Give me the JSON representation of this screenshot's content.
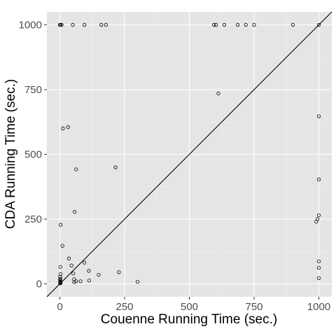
{
  "chart_data": {
    "type": "scatter",
    "title": "",
    "xlabel": "Couenne Running Time (sec.)",
    "ylabel": "CDA Running Time (sec.)",
    "xlim": [
      -50,
      1050
    ],
    "ylim": [
      -50,
      1050
    ],
    "x_ticks": [
      0,
      250,
      500,
      750,
      1000
    ],
    "y_ticks": [
      0,
      250,
      500,
      750,
      1000
    ],
    "x_tick_labels": [
      "0",
      "250",
      "500",
      "750",
      "1000"
    ],
    "y_tick_labels": [
      "0",
      "250",
      "500",
      "750",
      "1000"
    ],
    "grid": true,
    "reference_line": "y = x",
    "colors": {
      "panel_background": "#e5e5e5",
      "grid_major": "#ffffff",
      "grid_minor": "#f2f2f2",
      "point_stroke": "#000000",
      "reference_line": "#000000",
      "tick_label": "#4d4d4d",
      "axis_title": "#000000"
    },
    "points": [
      {
        "x": 0,
        "y": 1000
      },
      {
        "x": 3,
        "y": 1000
      },
      {
        "x": 7,
        "y": 1000
      },
      {
        "x": 50,
        "y": 1000
      },
      {
        "x": 95,
        "y": 1000
      },
      {
        "x": 160,
        "y": 1000
      },
      {
        "x": 178,
        "y": 1000
      },
      {
        "x": 595,
        "y": 1000
      },
      {
        "x": 603,
        "y": 1000
      },
      {
        "x": 635,
        "y": 1000
      },
      {
        "x": 687,
        "y": 1000
      },
      {
        "x": 718,
        "y": 1000
      },
      {
        "x": 750,
        "y": 1000
      },
      {
        "x": 900,
        "y": 1000
      },
      {
        "x": 1000,
        "y": 1000
      },
      {
        "x": 612,
        "y": 735
      },
      {
        "x": 1000,
        "y": 647
      },
      {
        "x": 32,
        "y": 605
      },
      {
        "x": 12,
        "y": 600
      },
      {
        "x": 215,
        "y": 450
      },
      {
        "x": 63,
        "y": 442
      },
      {
        "x": 1000,
        "y": 403
      },
      {
        "x": 57,
        "y": 278
      },
      {
        "x": 1000,
        "y": 265
      },
      {
        "x": 995,
        "y": 250
      },
      {
        "x": 990,
        "y": 240
      },
      {
        "x": 3,
        "y": 228
      },
      {
        "x": 10,
        "y": 147
      },
      {
        "x": 35,
        "y": 98
      },
      {
        "x": 1000,
        "y": 87
      },
      {
        "x": 95,
        "y": 82
      },
      {
        "x": 45,
        "y": 71
      },
      {
        "x": 2,
        "y": 65
      },
      {
        "x": 1000,
        "y": 62
      },
      {
        "x": 112,
        "y": 50
      },
      {
        "x": 228,
        "y": 45
      },
      {
        "x": 52,
        "y": 40
      },
      {
        "x": 3,
        "y": 38
      },
      {
        "x": 150,
        "y": 35
      },
      {
        "x": 1,
        "y": 27
      },
      {
        "x": 1000,
        "y": 22
      },
      {
        "x": 2,
        "y": 20
      },
      {
        "x": 55,
        "y": 18
      },
      {
        "x": 1,
        "y": 15
      },
      {
        "x": 113,
        "y": 13
      },
      {
        "x": 2,
        "y": 12
      },
      {
        "x": 63,
        "y": 10
      },
      {
        "x": 80,
        "y": 10
      },
      {
        "x": 3,
        "y": 8
      },
      {
        "x": 300,
        "y": 8
      },
      {
        "x": 55,
        "y": 7
      },
      {
        "x": 1,
        "y": 6
      },
      {
        "x": 2,
        "y": 4
      },
      {
        "x": 3,
        "y": 3
      },
      {
        "x": 1,
        "y": 2
      }
    ]
  }
}
